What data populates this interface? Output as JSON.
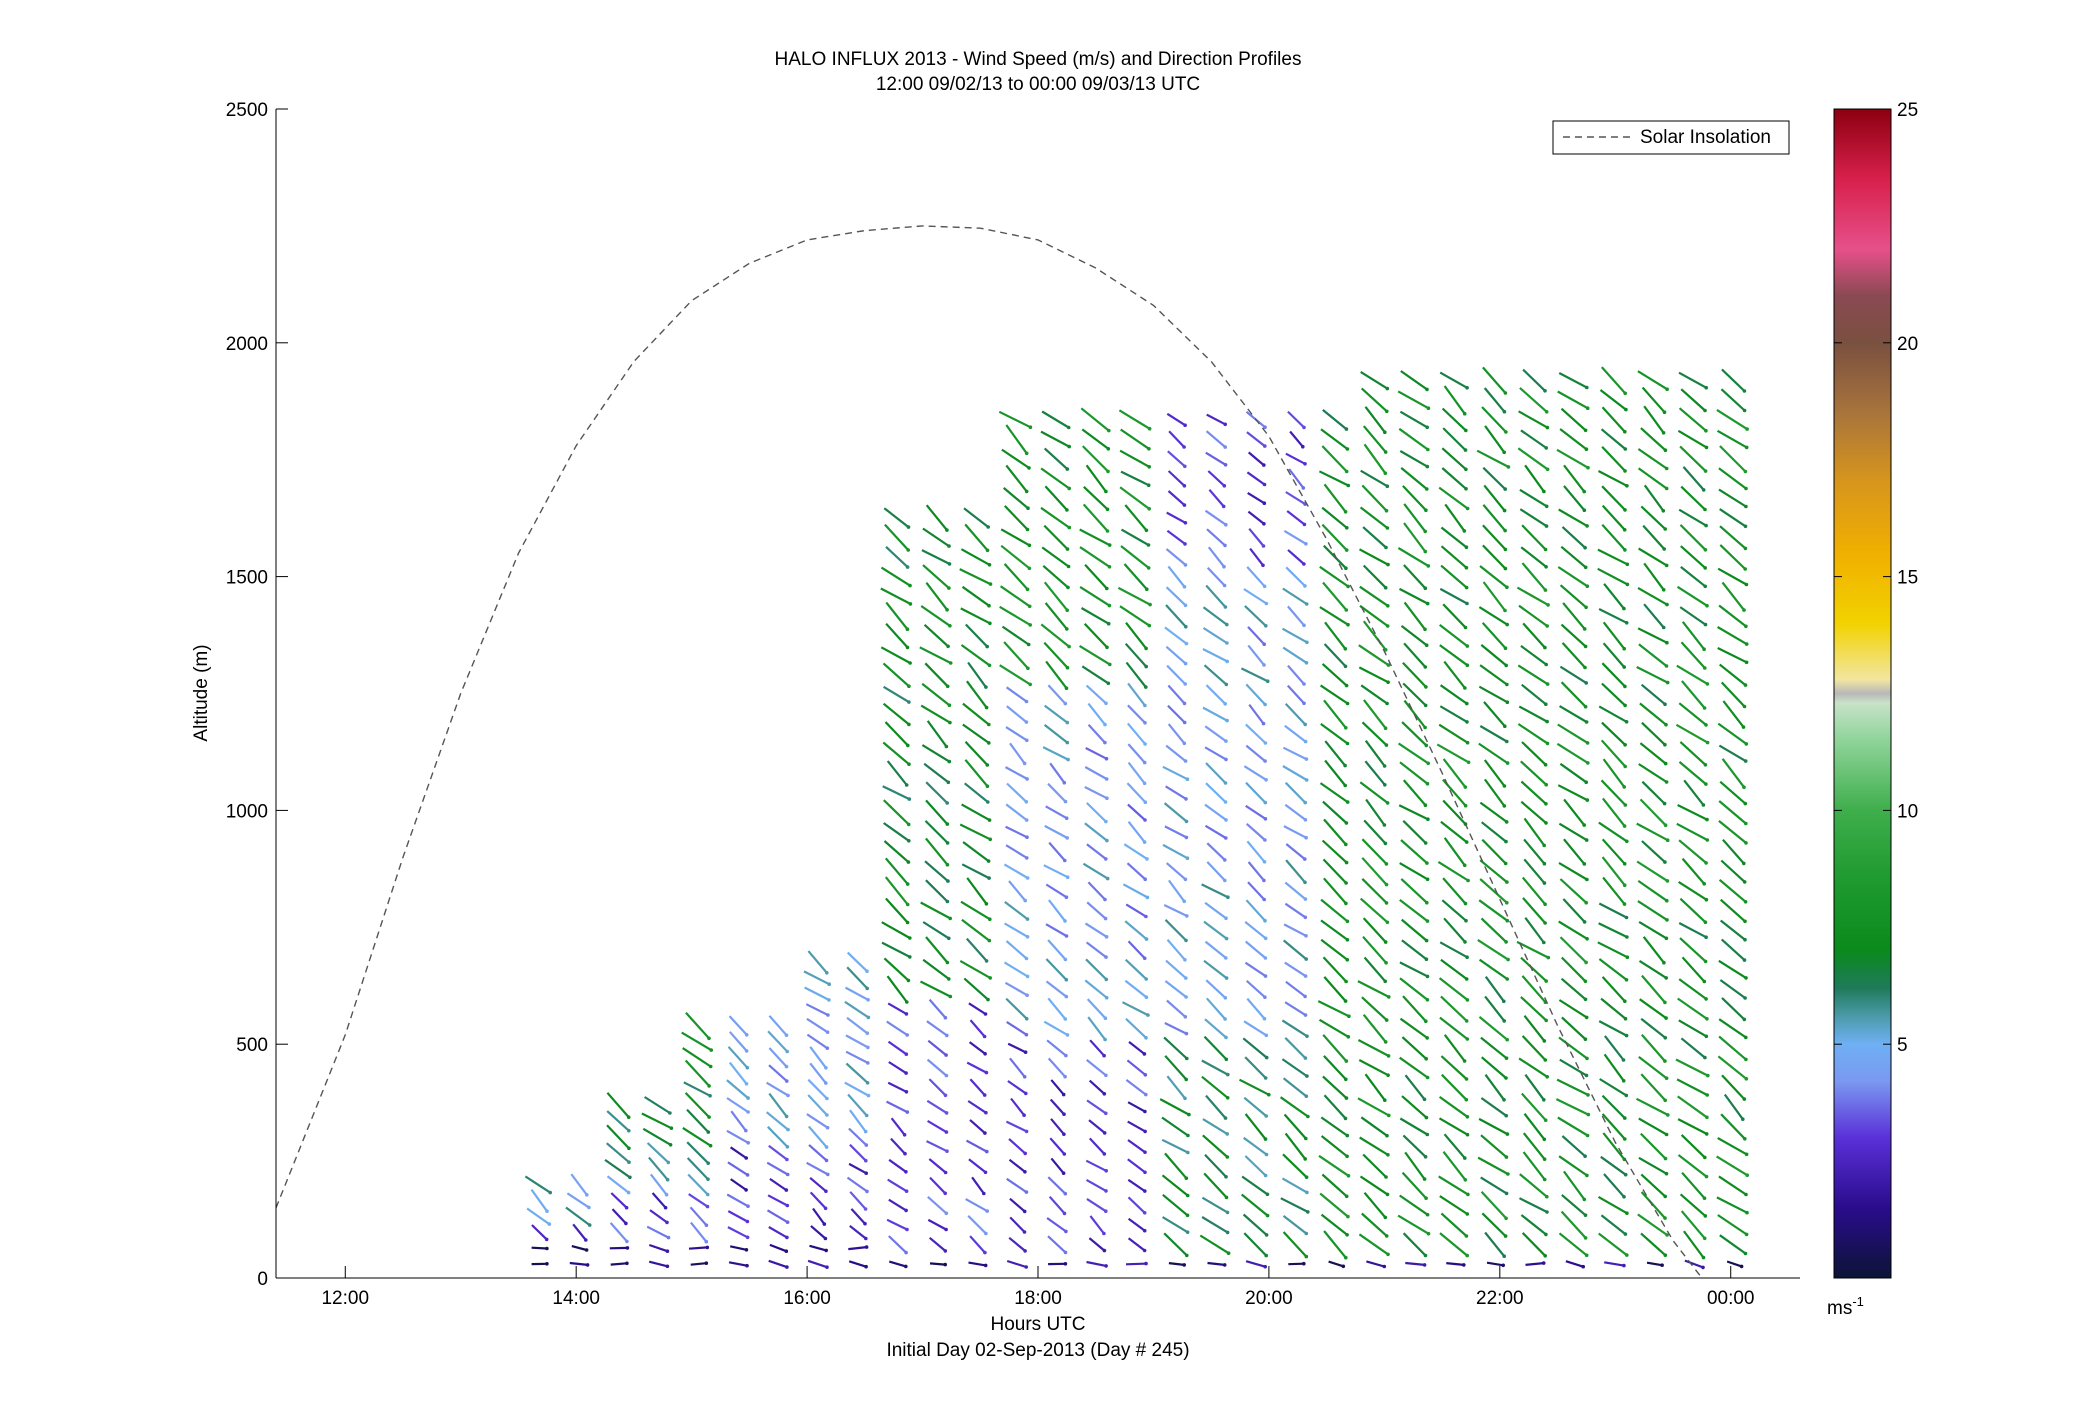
{
  "chart_data": {
    "type": "wind_barb_profile",
    "title": "HALO INFLUX 2013 - Wind Speed (m/s) and Direction Profiles",
    "subtitle": "12:00 09/02/13 to 00:00 09/03/13  UTC",
    "xlabel": "Hours UTC",
    "xlabel2": "Initial Day 02-Sep-2013 (Day # 245)",
    "ylabel": "Altitude (m)",
    "xlim_hours": [
      11.4,
      24.6
    ],
    "ylim": [
      0,
      2500
    ],
    "x_ticks": [
      {
        "hour": 12,
        "label": "12:00"
      },
      {
        "hour": 14,
        "label": "14:00"
      },
      {
        "hour": 16,
        "label": "16:00"
      },
      {
        "hour": 18,
        "label": "18:00"
      },
      {
        "hour": 20,
        "label": "20:00"
      },
      {
        "hour": 22,
        "label": "22:00"
      },
      {
        "hour": 24,
        "label": "00:00"
      }
    ],
    "y_ticks": [
      0,
      500,
      1000,
      1500,
      2000,
      2500
    ],
    "legend": {
      "label": "Solar Insolation",
      "placement": "top-right"
    },
    "solar_insolation": {
      "line_style": "dashed",
      "points": [
        [
          11.4,
          150
        ],
        [
          12.0,
          520
        ],
        [
          12.5,
          900
        ],
        [
          13.0,
          1250
        ],
        [
          13.5,
          1550
        ],
        [
          14.0,
          1780
        ],
        [
          14.5,
          1960
        ],
        [
          15.0,
          2090
        ],
        [
          15.5,
          2170
        ],
        [
          16.0,
          2220
        ],
        [
          16.5,
          2240
        ],
        [
          17.0,
          2250
        ],
        [
          17.5,
          2245
        ],
        [
          18.0,
          2220
        ],
        [
          18.5,
          2160
        ],
        [
          19.0,
          2080
        ],
        [
          19.5,
          1960
        ],
        [
          20.0,
          1800
        ],
        [
          20.5,
          1580
        ],
        [
          21.0,
          1340
        ],
        [
          21.5,
          1080
        ],
        [
          22.0,
          810
        ],
        [
          22.5,
          540
        ],
        [
          23.0,
          290
        ],
        [
          23.5,
          80
        ],
        [
          23.75,
          0
        ]
      ]
    },
    "colorbar": {
      "min": 0,
      "max": 25,
      "ticks": [
        5,
        10,
        15,
        20,
        25
      ],
      "unit_label": "ms",
      "unit_exponent": "-1",
      "colors": [
        [
          0,
          "#0c1436"
        ],
        [
          1.5,
          "#2a0c8c"
        ],
        [
          3,
          "#5a30d8"
        ],
        [
          4.2,
          "#7a98f0"
        ],
        [
          5,
          "#6fb0f4"
        ],
        [
          5.6,
          "#4b9aa8"
        ],
        [
          6.2,
          "#1f7a5a"
        ],
        [
          7,
          "#0b8a1c"
        ],
        [
          8.5,
          "#1e9a2e"
        ],
        [
          10,
          "#3fae4c"
        ],
        [
          11.5,
          "#8fd49a"
        ],
        [
          12.3,
          "#c8e2c8"
        ],
        [
          12.5,
          "#b8b8b8"
        ],
        [
          12.8,
          "#f2e6a0"
        ],
        [
          14,
          "#f2d200"
        ],
        [
          15.5,
          "#f0b000"
        ],
        [
          17,
          "#d8961c"
        ],
        [
          18.5,
          "#a8743c"
        ],
        [
          20,
          "#7a5040"
        ],
        [
          21,
          "#8a4a52"
        ],
        [
          22,
          "#e6508a"
        ],
        [
          23.5,
          "#d8204c"
        ],
        [
          25,
          "#8c0010"
        ]
      ]
    }
  }
}
